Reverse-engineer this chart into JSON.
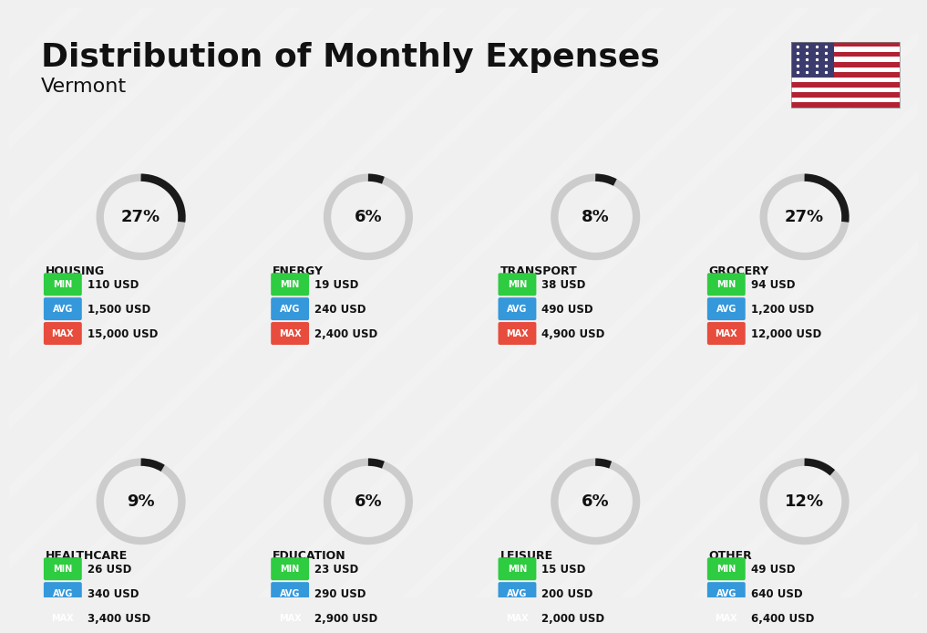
{
  "title": "Distribution of Monthly Expenses",
  "subtitle": "Vermont",
  "background_color": "#f0f0f0",
  "categories": [
    {
      "name": "HOUSING",
      "pct": 27,
      "min": "110 USD",
      "avg": "1,500 USD",
      "max": "15,000 USD",
      "row": 0,
      "col": 0
    },
    {
      "name": "ENERGY",
      "pct": 6,
      "min": "19 USD",
      "avg": "240 USD",
      "max": "2,400 USD",
      "row": 0,
      "col": 1
    },
    {
      "name": "TRANSPORT",
      "pct": 8,
      "min": "38 USD",
      "avg": "490 USD",
      "max": "4,900 USD",
      "row": 0,
      "col": 2
    },
    {
      "name": "GROCERY",
      "pct": 27,
      "min": "94 USD",
      "avg": "1,200 USD",
      "max": "12,000 USD",
      "row": 0,
      "col": 3
    },
    {
      "name": "HEALTHCARE",
      "pct": 9,
      "min": "26 USD",
      "avg": "340 USD",
      "max": "3,400 USD",
      "row": 1,
      "col": 0
    },
    {
      "name": "EDUCATION",
      "pct": 6,
      "min": "23 USD",
      "avg": "290 USD",
      "max": "2,900 USD",
      "row": 1,
      "col": 1
    },
    {
      "name": "LEISURE",
      "pct": 6,
      "min": "15 USD",
      "avg": "200 USD",
      "max": "2,000 USD",
      "row": 1,
      "col": 2
    },
    {
      "name": "OTHER",
      "pct": 12,
      "min": "49 USD",
      "avg": "640 USD",
      "max": "6,400 USD",
      "row": 1,
      "col": 3
    }
  ],
  "min_color": "#2ecc40",
  "avg_color": "#3498db",
  "max_color": "#e74c3c",
  "label_color": "#ffffff",
  "circle_bg": "#cccccc",
  "circle_fg": "#1a1a1a",
  "title_color": "#111111",
  "text_color": "#111111"
}
